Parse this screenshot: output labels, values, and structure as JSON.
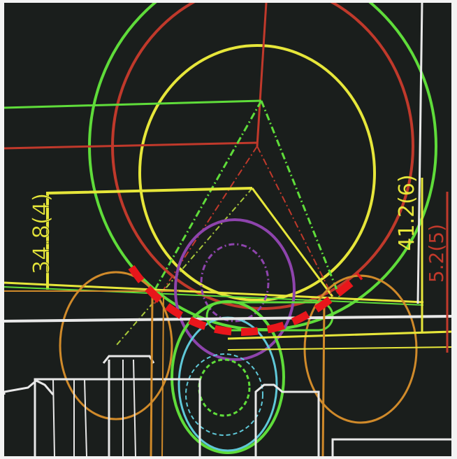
{
  "dimension_labels": {
    "left_dim": "34.8(4)",
    "right_dim_1": "41.2(6)",
    "right_dim_2": "5.2(5)"
  },
  "colors": {
    "background": "#1a1e1c",
    "green": "#5fdc3a",
    "yellow": "#e6e63a",
    "red": "#c0392b",
    "magenta": "#8e44ad",
    "white": "#e8e8e8",
    "orange": "#d08a2a",
    "cyan": "#5fc8d8",
    "highlight": "#e8161b"
  }
}
